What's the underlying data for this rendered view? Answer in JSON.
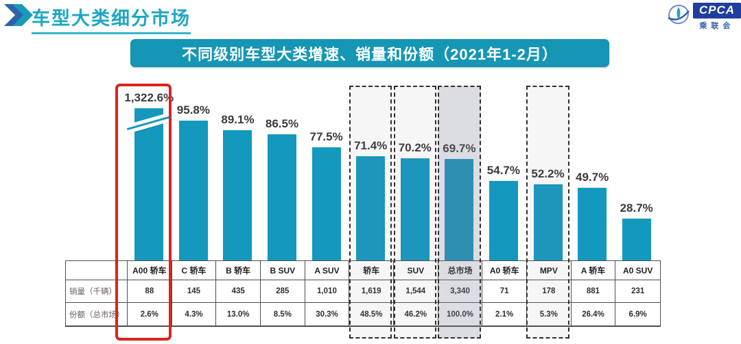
{
  "header": {
    "title": "车型大类细分市场",
    "title_color": "#1da7c4",
    "chevron_colors": [
      "#2c64a8",
      "#1a9aba"
    ],
    "logo": {
      "acronym": "CPCA",
      "cn_name": "乘联会"
    }
  },
  "banner": {
    "text": "不同级别车型大类增速、销量和份额（2021年1-2月）",
    "bg_color": "#1596b4"
  },
  "chart_data": {
    "type": "bar",
    "title": "不同级别车型大类增速、销量和份额（2021年1-2月）",
    "categories": [
      "A00 轿车",
      "C 轿车",
      "B 轿车",
      "B SUV",
      "A SUV",
      "轿车",
      "SUV",
      "总市场",
      "A0 轿车",
      "MPV",
      "A 轿车",
      "A0 SUV"
    ],
    "series": [
      {
        "name": "增速",
        "unit": "%",
        "values": [
          1322.6,
          95.8,
          89.1,
          86.5,
          77.5,
          71.4,
          70.2,
          69.7,
          54.7,
          52.2,
          49.7,
          28.7
        ],
        "labels": [
          "1,322.6%",
          "95.8%",
          "89.1%",
          "86.5%",
          "77.5%",
          "71.4%",
          "70.2%",
          "69.7%",
          "54.7%",
          "52.2%",
          "49.7%",
          "28.7%"
        ]
      },
      {
        "name": "销量（千辆）",
        "values": [
          "88",
          "145",
          "435",
          "285",
          "1,010",
          "1,619",
          "1,544",
          "3,340",
          "71",
          "178",
          "881",
          "231"
        ]
      },
      {
        "name": "份额（总市场）",
        "values": [
          "2.6%",
          "4.3%",
          "13.0%",
          "8.5%",
          "30.3%",
          "48.5%",
          "46.2%",
          "100.0%",
          "2.1%",
          "5.3%",
          "26.4%",
          "6.9%"
        ]
      }
    ],
    "bar_color": "#1598be",
    "label_color": "#3a3a3a",
    "axis_break_index": 0,
    "red_highlight_index": 0,
    "dashed_highlight_indices": [
      5,
      6,
      7,
      9
    ],
    "shaded_highlight_index": 7,
    "ylim": [
      0,
      105
    ],
    "grid": false,
    "legend": false
  },
  "table": {
    "row_labels": [
      "销量（千辆）",
      "份额（总市场）"
    ]
  }
}
